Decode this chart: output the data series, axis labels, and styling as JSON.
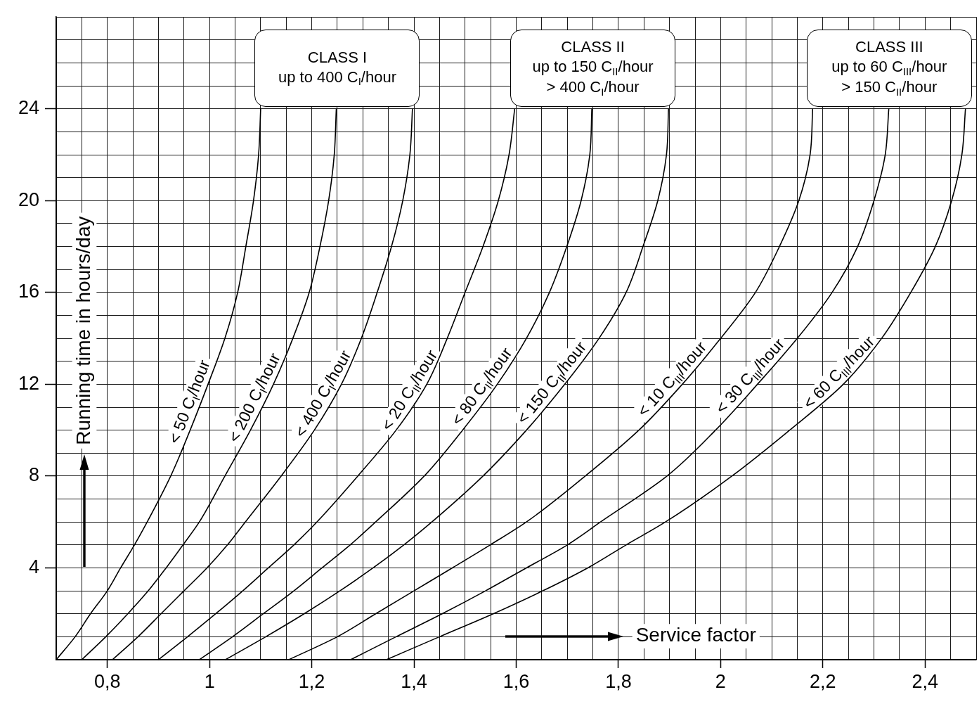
{
  "chart_data": {
    "type": "line",
    "xlabel": "Service factor",
    "ylabel": "Running time in hours/day",
    "xlim": [
      0.7,
      2.5
    ],
    "ylim": [
      0,
      28
    ],
    "xticks": [
      {
        "value": 0.7,
        "label": null
      },
      {
        "value": 0.75,
        "label": null
      },
      {
        "value": 0.8,
        "label": "0,8"
      },
      {
        "value": 0.85,
        "label": null
      },
      {
        "value": 0.9,
        "label": null
      },
      {
        "value": 0.95,
        "label": null
      },
      1,
      {
        "value": 1.05,
        "label": null
      },
      {
        "value": 1.1,
        "label": null
      },
      {
        "value": 1.15,
        "label": null
      },
      {
        "value": 1.2,
        "label": "1,2"
      },
      {
        "value": 1.25,
        "label": null
      },
      {
        "value": 1.3,
        "label": null
      },
      {
        "value": 1.35,
        "label": null
      },
      {
        "value": 1.4,
        "label": "1,4"
      },
      {
        "value": 1.45,
        "label": null
      },
      {
        "value": 1.5,
        "label": null
      },
      {
        "value": 1.55,
        "label": null
      },
      {
        "value": 1.6,
        "label": "1,6"
      },
      {
        "value": 1.65,
        "label": null
      },
      {
        "value": 1.7,
        "label": null
      },
      {
        "value": 1.75,
        "label": null
      },
      {
        "value": 1.8,
        "label": "1,8"
      },
      {
        "value": 1.85,
        "label": null
      },
      {
        "value": 1.9,
        "label": null
      },
      {
        "value": 1.95,
        "label": null
      },
      2,
      {
        "value": 2.05,
        "label": null
      },
      {
        "value": 2.1,
        "label": null
      },
      {
        "value": 2.15,
        "label": null
      },
      {
        "value": 2.2,
        "label": "2,2"
      },
      {
        "value": 2.25,
        "label": null
      },
      {
        "value": 2.3,
        "label": null
      },
      {
        "value": 2.35,
        "label": null
      },
      {
        "value": 2.4,
        "label": "2,4"
      },
      {
        "value": 2.45,
        "label": null
      },
      {
        "value": 2.5,
        "label": null
      }
    ],
    "yticks": [
      {
        "value": 0,
        "label": null
      },
      {
        "value": 1,
        "label": null
      },
      {
        "value": 2,
        "label": null
      },
      {
        "value": 3,
        "label": null
      },
      4,
      {
        "value": 5,
        "label": null
      },
      {
        "value": 6,
        "label": null
      },
      {
        "value": 7,
        "label": null
      },
      8,
      {
        "value": 9,
        "label": null
      },
      {
        "value": 10,
        "label": null
      },
      {
        "value": 11,
        "label": null
      },
      12,
      {
        "value": 13,
        "label": null
      },
      {
        "value": 14,
        "label": null
      },
      {
        "value": 15,
        "label": null
      },
      16,
      {
        "value": 17,
        "label": null
      },
      {
        "value": 18,
        "label": null
      },
      {
        "value": 19,
        "label": null
      },
      20,
      {
        "value": 21,
        "label": null
      },
      {
        "value": 22,
        "label": null
      },
      {
        "value": 23,
        "label": null
      },
      24,
      {
        "value": 25,
        "label": null
      },
      {
        "value": 26,
        "label": null
      },
      {
        "value": 27,
        "label": null
      },
      {
        "value": 28,
        "label": null
      }
    ],
    "grid": true,
    "marker": "none",
    "annotations": [
      {
        "text": "CLASS I\nup to 400 C$_{I}$/hour",
        "x": 1.25,
        "y": 24
      },
      {
        "text": "CLASS II\nup to 150 C$_{II}$/hour\n> 400 C$_{I}$/hour",
        "x": 1.75,
        "y": 24
      },
      {
        "text": "CLASS III\nup to 60 C$_{III}$/hour\n> 150 C$_{II}$/hour",
        "x": 2.33,
        "y": 24
      }
    ],
    "series": [
      {
        "name": "< 50 C$_{I}$/hour",
        "color": "#000000",
        "x": [
          0.7,
          0.737,
          0.767,
          0.8,
          0.826,
          0.853,
          0.878,
          0.924,
          0.962,
          0.997,
          1.03,
          1.055,
          1.071,
          1.086,
          1.096,
          1.1
        ],
        "values": [
          0,
          1,
          2,
          3,
          4,
          5,
          6,
          8,
          10,
          12,
          14,
          16,
          18,
          20,
          22,
          24
        ]
      },
      {
        "name": "< 200 C$_{I}$/hour",
        "color": "#000000",
        "x": [
          0.75,
          0.797,
          0.84,
          0.88,
          0.915,
          0.948,
          0.98,
          1.03,
          1.08,
          1.125,
          1.163,
          1.195,
          1.216,
          1.233,
          1.244,
          1.248
        ],
        "values": [
          0,
          1,
          2,
          3,
          4,
          5,
          6,
          8,
          10,
          12,
          14,
          16,
          18,
          20,
          22,
          24
        ]
      },
      {
        "name": "< 400 C$_{I}$/hour",
        "color": "#000000",
        "x": [
          0.81,
          0.86,
          0.905,
          0.95,
          0.995,
          1.035,
          1.07,
          1.14,
          1.205,
          1.258,
          1.297,
          1.328,
          1.356,
          1.378,
          1.392,
          1.397
        ],
        "values": [
          0,
          1,
          2,
          3,
          4,
          5,
          6,
          8,
          10,
          12,
          14,
          16,
          18,
          20,
          22,
          24
        ]
      },
      {
        "name": "< 20 C$_{II}$/hour",
        "color": "#000000",
        "x": [
          0.9,
          0.957,
          1.012,
          1.065,
          1.115,
          1.165,
          1.21,
          1.29,
          1.365,
          1.425,
          1.465,
          1.5,
          1.535,
          1.565,
          1.586,
          1.597
        ],
        "values": [
          0,
          1,
          2,
          3,
          4,
          5,
          6,
          8,
          10,
          12,
          14,
          16,
          18,
          20,
          22,
          24
        ]
      },
      {
        "name": "< 80 C$_{II}$/hour",
        "color": "#000000",
        "x": [
          0.98,
          1.045,
          1.105,
          1.165,
          1.22,
          1.275,
          1.325,
          1.42,
          1.495,
          1.563,
          1.62,
          1.665,
          1.699,
          1.727,
          1.744,
          1.748
        ],
        "values": [
          0,
          1,
          2,
          3,
          4,
          5,
          6,
          8,
          10,
          12,
          14,
          16,
          18,
          20,
          22,
          24
        ]
      },
      {
        "name": "< 150 C$_{II}$/hour",
        "color": "#000000",
        "x": [
          1.031,
          1.11,
          1.185,
          1.255,
          1.32,
          1.38,
          1.435,
          1.535,
          1.62,
          1.695,
          1.762,
          1.815,
          1.848,
          1.877,
          1.894,
          1.898
        ],
        "values": [
          0,
          1,
          2,
          3,
          4,
          5,
          6,
          8,
          10,
          12,
          14,
          16,
          18,
          20,
          22,
          24
        ]
      },
      {
        "name": "< 10 C$_{III}$/hour",
        "color": "#000000",
        "x": [
          1.155,
          1.25,
          1.325,
          1.4,
          1.475,
          1.549,
          1.62,
          1.735,
          1.84,
          1.925,
          2.0,
          2.068,
          2.115,
          2.153,
          2.175,
          2.18
        ],
        "values": [
          0,
          1,
          2,
          3,
          4,
          5,
          6,
          8,
          10,
          12,
          14,
          16,
          18,
          20,
          22,
          24
        ]
      },
      {
        "name": "< 30 C$_{III}$/hour",
        "color": "#000000",
        "x": [
          1.276,
          1.365,
          1.455,
          1.54,
          1.62,
          1.7,
          1.765,
          1.895,
          1.99,
          2.072,
          2.15,
          2.218,
          2.268,
          2.3,
          2.322,
          2.329
        ],
        "values": [
          0,
          1,
          2,
          3,
          4,
          5,
          6,
          8,
          10,
          12,
          14,
          16,
          18,
          20,
          22,
          24
        ]
      },
      {
        "name": "< 60 C$_{III}$/hour",
        "color": "#000000",
        "x": [
          1.346,
          1.45,
          1.555,
          1.652,
          1.74,
          1.815,
          1.892,
          2.022,
          2.135,
          2.24,
          2.315,
          2.372,
          2.42,
          2.452,
          2.472,
          2.479
        ],
        "values": [
          0,
          1,
          2,
          3,
          4,
          5,
          6,
          8,
          10,
          12,
          14,
          16,
          18,
          20,
          22,
          24
        ]
      }
    ]
  }
}
